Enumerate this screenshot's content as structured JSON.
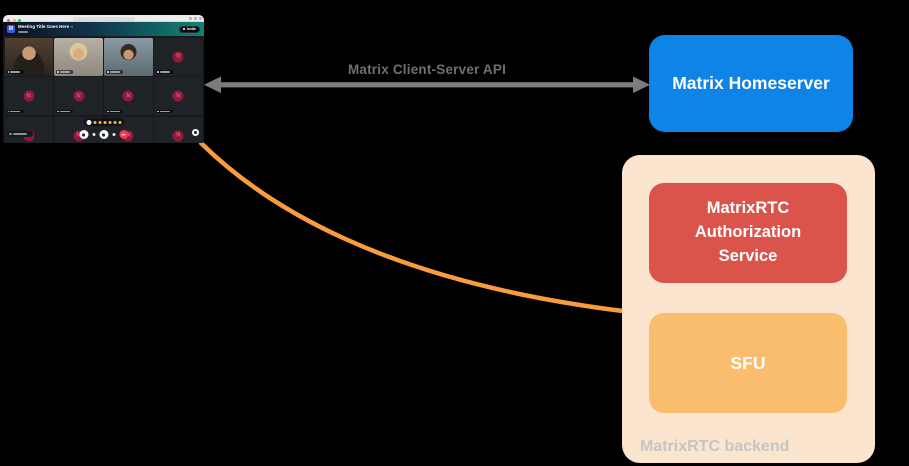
{
  "diagram": {
    "api_label": "Matrix Client-Server API",
    "arrow_color": "#7C7C7C",
    "curve_color": "#F89C3E",
    "homeserver": {
      "label": "Matrix Homeserver",
      "bg": "#0D84E6",
      "text_color": "#FFFFFF"
    },
    "backend": {
      "label": "MatrixRTC backend",
      "bg": "#FBE5CE",
      "label_color": "#C5C5C5",
      "auth_service": {
        "label": "MatrixRTC Authorization Service",
        "bg": "#DA544C",
        "text_color": "#FFFFFF"
      },
      "sfu": {
        "label": "SFU",
        "bg": "#F9BD6D",
        "text_color": "#FFFFFF"
      }
    }
  },
  "app_window": {
    "browser": {
      "traffic_lights": [
        "#FF5F57",
        "#FEBC2E",
        "#28C840"
      ]
    },
    "header": {
      "logo_letter": "M",
      "title": "Meeting Title Goes Here",
      "invite_label": "Invite"
    },
    "grid": {
      "avatar_letter": "N",
      "avatar_bg": "#8E1A3C",
      "avatar_text": "#E8516E",
      "tiles": [
        {
          "type": "photo",
          "variant": "p1",
          "border": "#E8772C"
        },
        {
          "type": "photo",
          "variant": "p2"
        },
        {
          "type": "photo",
          "variant": "p3",
          "border": "#2BB8A0"
        },
        {
          "type": "avatar"
        },
        {
          "type": "avatar"
        },
        {
          "type": "avatar"
        },
        {
          "type": "avatar"
        },
        {
          "type": "avatar"
        },
        {
          "type": "avatar",
          "presence": true
        },
        {
          "type": "avatar"
        },
        {
          "type": "avatar"
        },
        {
          "type": "avatar"
        }
      ]
    },
    "controls": {
      "reaction_count": 6,
      "reaction_color": "#F0B93C",
      "hangup_color": "#EF3A55"
    }
  }
}
